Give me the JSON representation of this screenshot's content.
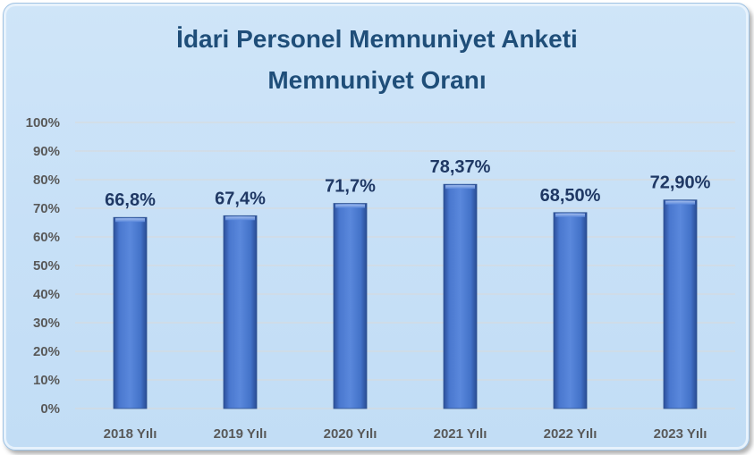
{
  "chart_data": {
    "type": "bar",
    "title": "İdari Personel Memnuniyet Anketi",
    "subtitle": "Memnuniyet Oranı",
    "categories": [
      "2018 Yılı",
      "2019 Yılı",
      "2020 Yılı",
      "2021 Yılı",
      "2022 Yılı",
      "2023 Yılı"
    ],
    "values": [
      66.8,
      67.4,
      71.7,
      78.37,
      68.5,
      72.9
    ],
    "data_labels": [
      "66,8%",
      "67,4%",
      "71,7%",
      "78,37%",
      "68,50%",
      "72,90%"
    ],
    "yticks": [
      "0%",
      "10%",
      "20%",
      "30%",
      "40%",
      "50%",
      "60%",
      "70%",
      "80%",
      "90%",
      "100%"
    ],
    "ylim": [
      0,
      100
    ],
    "xlabel": "",
    "ylabel": "",
    "grid": true,
    "legend": "none",
    "colors": {
      "bar": "#4472c4",
      "title": "#1f4e79",
      "data_label": "#1f3864",
      "tick": "#595959",
      "grid": "#d9d9d9"
    }
  }
}
